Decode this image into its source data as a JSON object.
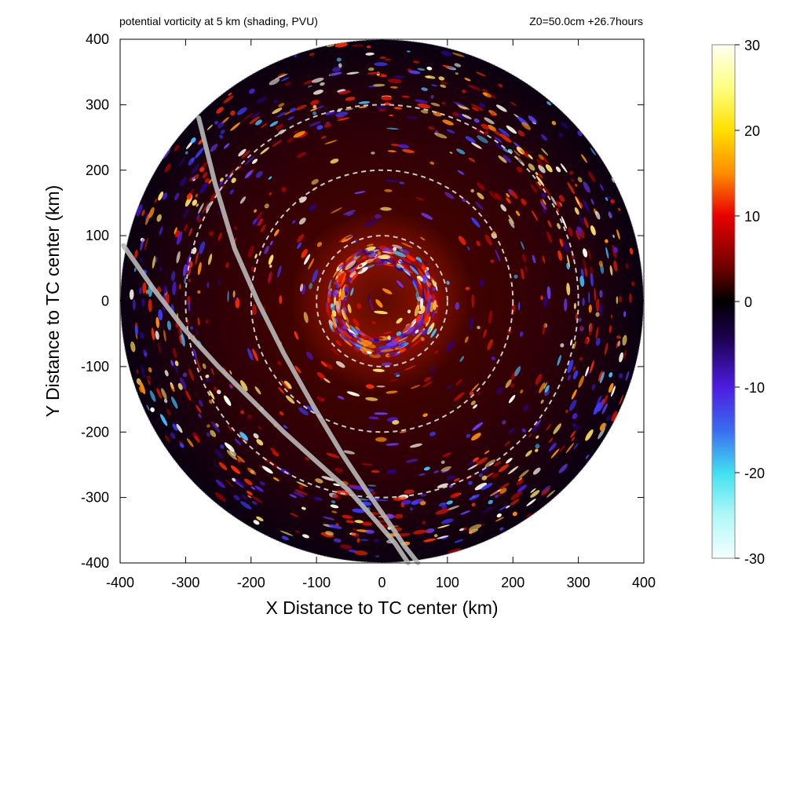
{
  "chart_data": {
    "type": "heatmap",
    "title": "potential vorticity at 5 km (shading, PVU)",
    "subtitle": "Z0=50.0cm  +26.7hours",
    "xlabel": "X Distance to TC center (km)",
    "ylabel": "Y Distance to TC center (km)",
    "xlim": [
      -400,
      400
    ],
    "ylim": [
      -400,
      400
    ],
    "x_ticks": [
      "-400",
      "-300",
      "-200",
      "-100",
      "0",
      "100",
      "200",
      "300",
      "400"
    ],
    "y_ticks": [
      "400",
      "300",
      "200",
      "100",
      "0",
      "-100",
      "-200",
      "-300",
      "-400"
    ],
    "domain_radius_km": 400,
    "range_rings_km": [
      100,
      200,
      300
    ],
    "colorbar": {
      "range": [
        -30,
        30
      ],
      "ticks": [
        "30",
        "20",
        "10",
        "0",
        "-10",
        "-20",
        "-30"
      ],
      "stops": [
        {
          "value": 30,
          "color": "#fffff2"
        },
        {
          "value": 25,
          "color": "#ffff80"
        },
        {
          "value": 20,
          "color": "#ffe000"
        },
        {
          "value": 15,
          "color": "#ff8c00"
        },
        {
          "value": 10,
          "color": "#e80000"
        },
        {
          "value": 4,
          "color": "#700000"
        },
        {
          "value": 0,
          "color": "#000000"
        },
        {
          "value": -4,
          "color": "#1a0048"
        },
        {
          "value": -10,
          "color": "#4c1ce0"
        },
        {
          "value": -15,
          "color": "#3a6cf0"
        },
        {
          "value": -20,
          "color": "#40e0f0"
        },
        {
          "value": -25,
          "color": "#b0f8f8"
        },
        {
          "value": -30,
          "color": "#f4ffff"
        }
      ]
    },
    "tracks": [
      {
        "x": [
          -280,
          -255,
          -225,
          -190,
          -150,
          -105,
          -60,
          -20,
          15,
          35,
          55
        ],
        "y": [
          280,
          180,
          80,
          0,
          -80,
          -160,
          -235,
          -295,
          -345,
          -375,
          -400
        ]
      },
      {
        "x": [
          -395,
          -350,
          -300,
          -250,
          -200,
          -150,
          -100,
          -50,
          -10,
          20,
          40
        ],
        "y": [
          85,
          20,
          -45,
          -100,
          -150,
          -200,
          -245,
          -290,
          -335,
          -370,
          -400
        ]
      }
    ],
    "field_description_features": {
      "eyewall_radius_km": 70,
      "outer_band_radius_km": [
        280,
        380
      ]
    }
  }
}
